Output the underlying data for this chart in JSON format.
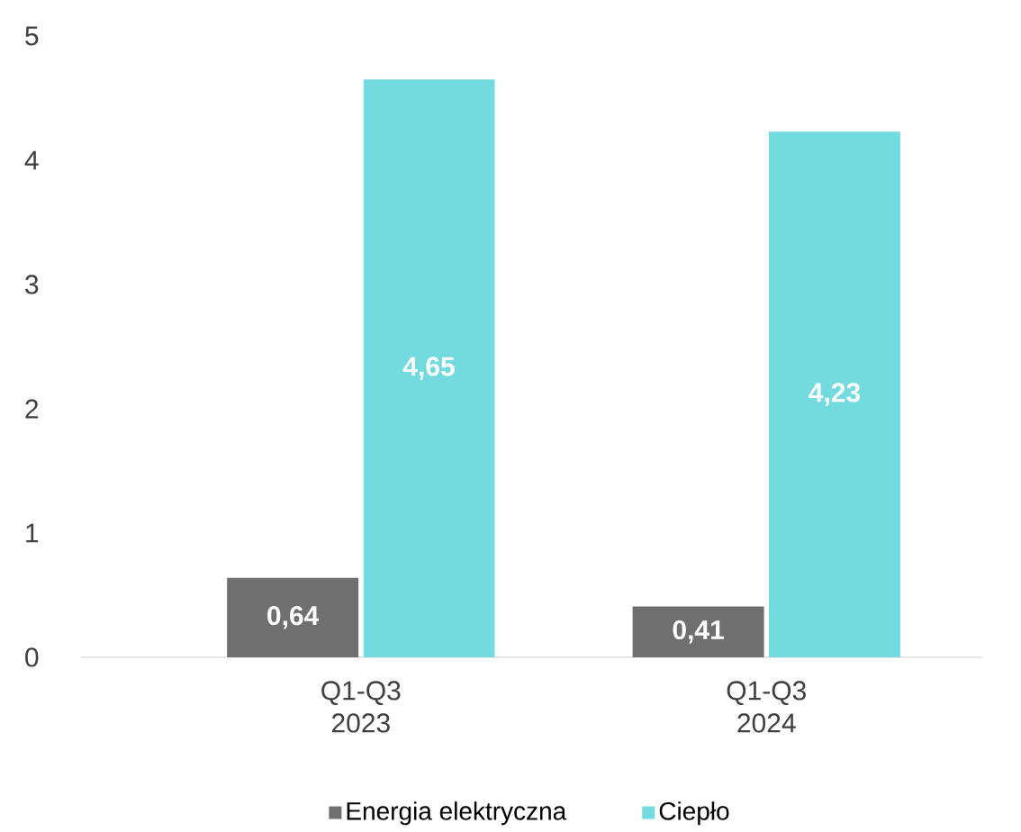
{
  "chart_data": {
    "type": "bar",
    "categories": [
      "Q1-Q3 2023",
      "Q1-Q3 2024"
    ],
    "series": [
      {
        "name": "Energia elektryczna",
        "color": "#6f6f6f",
        "values": [
          0.64,
          0.41
        ],
        "value_labels": [
          "0,64",
          "0,41"
        ]
      },
      {
        "name": "Ciepło",
        "color": "#73dadf",
        "values": [
          4.65,
          4.23
        ],
        "value_labels": [
          "4,65",
          "4,23"
        ]
      }
    ],
    "ylim": [
      0,
      5
    ],
    "yticks": [
      0,
      1,
      2,
      3,
      4,
      5
    ],
    "grid": false,
    "legend": "bottom"
  }
}
